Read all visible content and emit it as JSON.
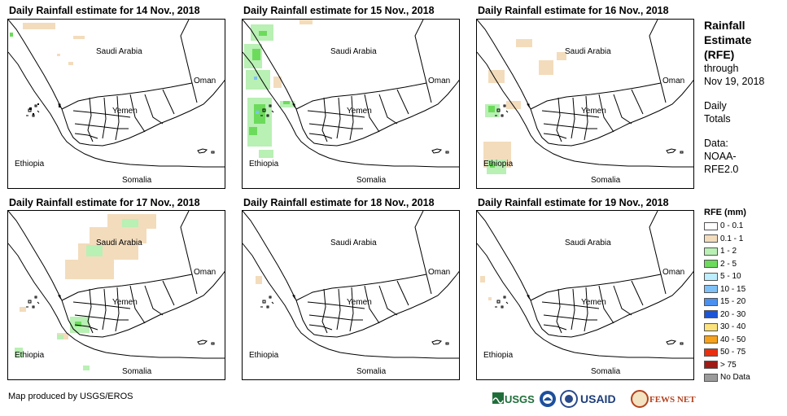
{
  "panels": [
    {
      "title": "Daily Rainfall estimate for 14 Nov., 2018"
    },
    {
      "title": "Daily Rainfall estimate for 15 Nov., 2018"
    },
    {
      "title": "Daily Rainfall estimate for 16 Nov., 2018"
    },
    {
      "title": "Daily Rainfall estimate for 17 Nov., 2018"
    },
    {
      "title": "Daily Rainfall estimate for 18 Nov., 2018"
    },
    {
      "title": "Daily Rainfall estimate for 19 Nov., 2018"
    }
  ],
  "countries": {
    "saudi": "Saudi Arabia",
    "oman": "Oman",
    "yemen": "Yemen",
    "ethiopia": "Ethiopia",
    "somalia": "Somalia"
  },
  "side": {
    "title_lines": [
      "Rainfall",
      "Estimate",
      "(RFE)"
    ],
    "through": "through",
    "date": "Nov 19, 2018",
    "daily": "Daily",
    "totals": "Totals",
    "data": "Data:",
    "source1": "NOAA-",
    "source2": "RFE2.0"
  },
  "legend": {
    "title": "RFE (mm)",
    "items": [
      {
        "label": "0 - 0.1",
        "color": "#ffffff"
      },
      {
        "label": "0.1 - 1",
        "color": "#f3dcbc"
      },
      {
        "label": "1 - 2",
        "color": "#b9f0b4"
      },
      {
        "label": "2 - 5",
        "color": "#6cdb5c"
      },
      {
        "label": "5 - 10",
        "color": "#bdeeff"
      },
      {
        "label": "10 - 15",
        "color": "#7fc0f7"
      },
      {
        "label": "15 - 20",
        "color": "#4a90f0"
      },
      {
        "label": "20 - 30",
        "color": "#1a55d8"
      },
      {
        "label": "30 - 40",
        "color": "#fbe27a"
      },
      {
        "label": "40 - 50",
        "color": "#f7a21a"
      },
      {
        "label": "50 - 75",
        "color": "#ea2f10"
      },
      {
        "label": "> 75",
        "color": "#a01a16"
      },
      {
        "label": "No Data",
        "color": "#9b9b9b"
      }
    ]
  },
  "footer": "Map produced by USGS/EROS",
  "logos": {
    "usgs": "USGS",
    "usaid": "USAID",
    "fewsnet": "FEWS NET"
  }
}
